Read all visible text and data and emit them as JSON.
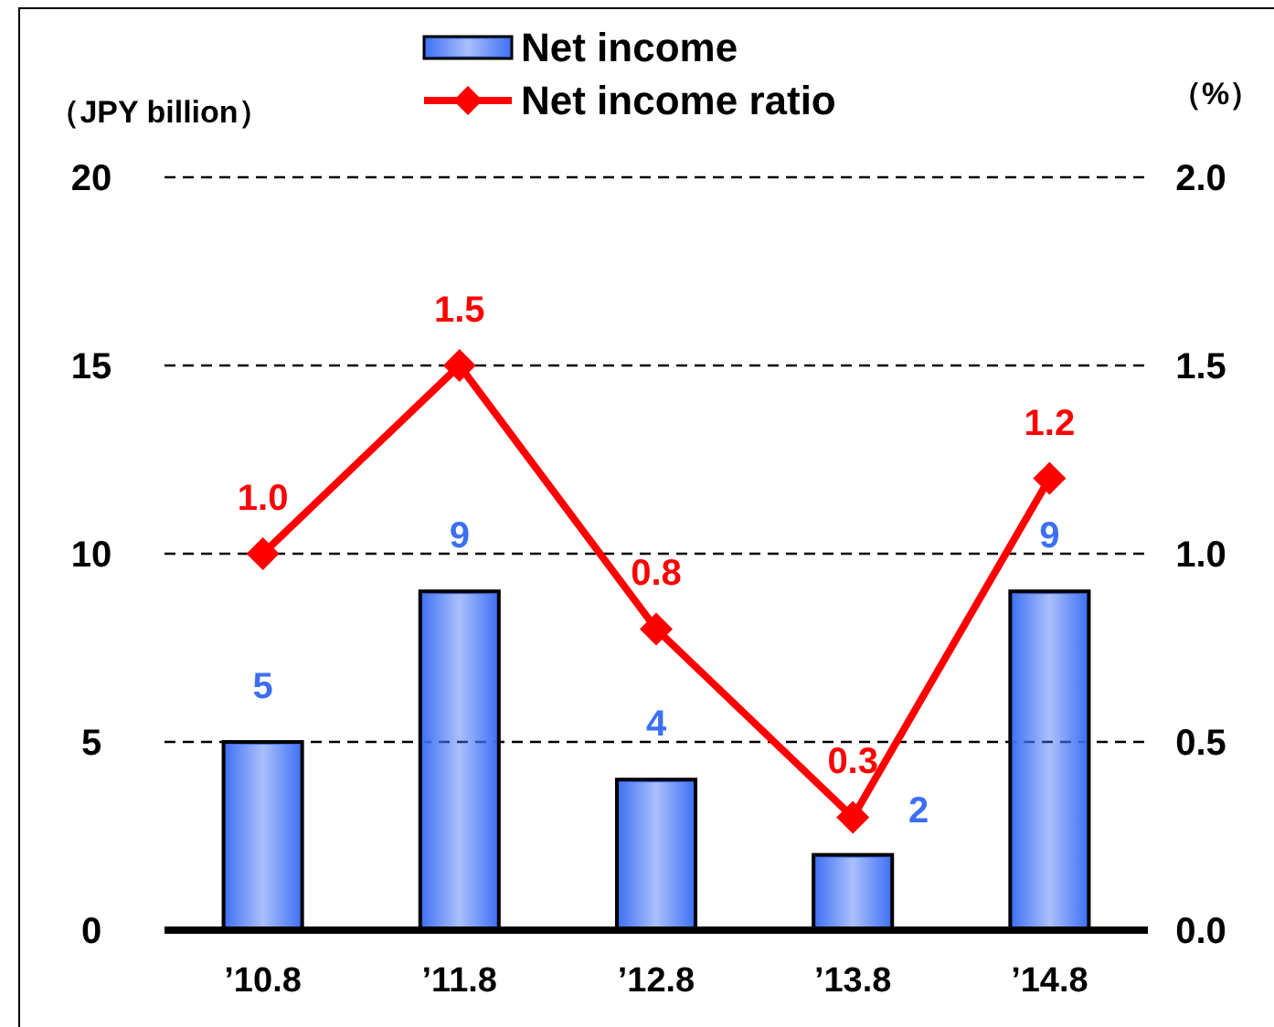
{
  "chart_data": {
    "type": "bar",
    "categories": [
      "’10.8",
      "’11.8",
      "’12.8",
      "’13.8",
      "’14.8"
    ],
    "series": [
      {
        "name": "Net income",
        "color": "#3d6ff5",
        "values": [
          5,
          9,
          4,
          2,
          9
        ]
      },
      {
        "name": "Net income ratio",
        "type": "line",
        "axis": "y2",
        "color": "#ff0000",
        "values": [
          1.0,
          1.5,
          0.8,
          0.3,
          1.2
        ],
        "value_labels": [
          "1.0",
          "1.5",
          "0.8",
          "0.3",
          "1.2"
        ]
      }
    ],
    "ylabel": "（JPY billion）",
    "y2label": "（%）",
    "ylim": [
      0,
      20
    ],
    "yticks": [
      0,
      5,
      10,
      15,
      20
    ],
    "y2lim": [
      0,
      2
    ],
    "y2ticks": [
      {
        "value": 0,
        "label": "0.0"
      },
      {
        "value": 0.5,
        "label": "0.5"
      },
      {
        "value": 1,
        "label": "1.0"
      },
      {
        "value": 1.5,
        "label": "1.5"
      },
      {
        "value": 2,
        "label": "2.0"
      }
    ],
    "grid": "y",
    "legend": "top",
    "marker": "diamond",
    "data_labels": true
  }
}
